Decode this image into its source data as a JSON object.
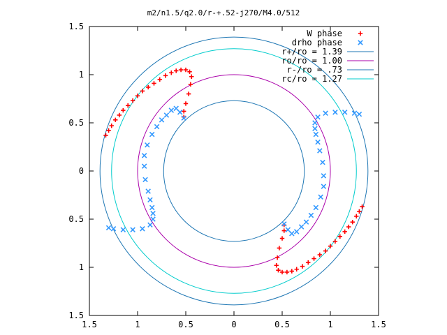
{
  "chart_data": {
    "type": "scatter",
    "title": "m2/n1.5/q2.0/r-+.52-j270/M4.0/512",
    "xlim": [
      -1.5,
      1.5
    ],
    "ylim": [
      -1.5,
      1.5
    ],
    "x_tick_values": [
      -1.5,
      -1,
      -0.5,
      0,
      0.5,
      1,
      1.5
    ],
    "y_tick_values": [
      -1.5,
      -1,
      -0.5,
      0,
      0.5,
      1,
      1.5
    ],
    "x_tick_labels": [
      "1.5",
      "1",
      "0.5",
      "0",
      "0.5",
      "1",
      "1.5"
    ],
    "y_tick_labels": [
      "1.5",
      "1",
      "0.5",
      "0",
      "0.5",
      "1",
      "1.5"
    ],
    "grid": false,
    "legend_position": "top-right",
    "series": [
      {
        "name": "W phase",
        "marker": "plus",
        "color": "#ff0000",
        "points": [
          [
            -1.33,
            0.37
          ],
          [
            -1.3,
            0.42
          ],
          [
            -1.27,
            0.47
          ],
          [
            -1.23,
            0.53
          ],
          [
            -1.19,
            0.58
          ],
          [
            -1.15,
            0.63
          ],
          [
            -1.1,
            0.68
          ],
          [
            -1.05,
            0.73
          ],
          [
            -1.0,
            0.78
          ],
          [
            -0.95,
            0.83
          ],
          [
            -0.89,
            0.87
          ],
          [
            -0.83,
            0.91
          ],
          [
            -0.77,
            0.95
          ],
          [
            -0.71,
            0.99
          ],
          [
            -0.65,
            1.02
          ],
          [
            -0.6,
            1.04
          ],
          [
            -0.55,
            1.05
          ],
          [
            -0.5,
            1.05
          ],
          [
            -0.46,
            1.03
          ],
          [
            -0.44,
            0.98
          ],
          [
            -0.45,
            0.9
          ],
          [
            -0.47,
            0.8
          ],
          [
            -0.5,
            0.7
          ],
          [
            -0.52,
            0.62
          ],
          [
            -0.52,
            0.56
          ],
          [
            1.33,
            -0.37
          ],
          [
            1.3,
            -0.42
          ],
          [
            1.27,
            -0.47
          ],
          [
            1.23,
            -0.53
          ],
          [
            1.19,
            -0.58
          ],
          [
            1.15,
            -0.63
          ],
          [
            1.1,
            -0.68
          ],
          [
            1.05,
            -0.73
          ],
          [
            1.0,
            -0.78
          ],
          [
            0.95,
            -0.83
          ],
          [
            0.89,
            -0.87
          ],
          [
            0.83,
            -0.91
          ],
          [
            0.77,
            -0.95
          ],
          [
            0.71,
            -0.99
          ],
          [
            0.65,
            -1.02
          ],
          [
            0.6,
            -1.04
          ],
          [
            0.55,
            -1.05
          ],
          [
            0.5,
            -1.05
          ],
          [
            0.46,
            -1.03
          ],
          [
            0.44,
            -0.98
          ],
          [
            0.45,
            -0.9
          ],
          [
            0.47,
            -0.8
          ],
          [
            0.5,
            -0.7
          ],
          [
            0.52,
            -0.62
          ],
          [
            0.52,
            -0.56
          ]
        ]
      },
      {
        "name": "drho phase",
        "marker": "cross",
        "color": "#3399ff",
        "points": [
          [
            -0.52,
            0.55
          ],
          [
            -0.56,
            0.61
          ],
          [
            -0.6,
            0.65
          ],
          [
            -0.65,
            0.63
          ],
          [
            -0.7,
            0.58
          ],
          [
            -0.75,
            0.53
          ],
          [
            -0.8,
            0.46
          ],
          [
            -0.85,
            0.38
          ],
          [
            -0.9,
            0.27
          ],
          [
            -0.93,
            0.16
          ],
          [
            -0.93,
            0.05
          ],
          [
            -0.92,
            -0.09
          ],
          [
            -0.89,
            -0.21
          ],
          [
            -0.87,
            -0.3
          ],
          [
            -0.85,
            -0.38
          ],
          [
            -0.84,
            -0.44
          ],
          [
            -0.84,
            -0.5
          ],
          [
            -0.87,
            -0.56
          ],
          [
            -0.95,
            -0.6
          ],
          [
            -1.05,
            -0.61
          ],
          [
            -1.15,
            -0.61
          ],
          [
            -1.25,
            -0.6
          ],
          [
            -1.3,
            -0.59
          ],
          [
            0.52,
            -0.55
          ],
          [
            0.56,
            -0.61
          ],
          [
            0.6,
            -0.65
          ],
          [
            0.65,
            -0.63
          ],
          [
            0.7,
            -0.58
          ],
          [
            0.75,
            -0.53
          ],
          [
            0.8,
            -0.46
          ],
          [
            0.85,
            -0.38
          ],
          [
            0.9,
            -0.27
          ],
          [
            0.93,
            -0.16
          ],
          [
            0.93,
            -0.05
          ],
          [
            0.92,
            0.09
          ],
          [
            0.89,
            0.21
          ],
          [
            0.87,
            0.3
          ],
          [
            0.85,
            0.38
          ],
          [
            0.84,
            0.44
          ],
          [
            0.84,
            0.5
          ],
          [
            0.87,
            0.56
          ],
          [
            0.95,
            0.6
          ],
          [
            1.05,
            0.61
          ],
          [
            1.15,
            0.61
          ],
          [
            1.25,
            0.6
          ],
          [
            1.3,
            0.59
          ]
        ]
      },
      {
        "name": "r+/ro = 1.39",
        "type": "circle",
        "radius": 1.39,
        "color": "#1f77b4"
      },
      {
        "name": "ro/ro = 1.00",
        "type": "circle",
        "radius": 1.0,
        "color": "#aa00aa"
      },
      {
        "name": "r-/ro = .73",
        "type": "circle",
        "radius": 0.73,
        "color": "#1f77b4"
      },
      {
        "name": "rc/ro = 1.27",
        "type": "circle",
        "radius": 1.27,
        "color": "#00cccc"
      }
    ]
  }
}
